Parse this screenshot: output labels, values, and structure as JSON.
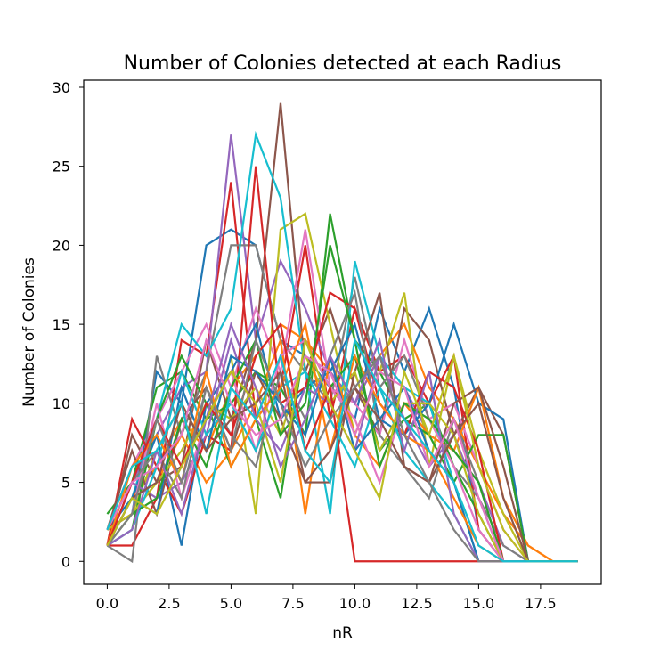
{
  "chart_data": {
    "type": "line",
    "title": "Number of Colonies detected at each Radius",
    "xlabel": "nR",
    "ylabel": "Number of Colonies",
    "xlim": [
      -0.95,
      19.95
    ],
    "ylim": [
      -1.45,
      30.45
    ],
    "xticks": [
      0.0,
      2.5,
      5.0,
      7.5,
      10.0,
      12.5,
      15.0,
      17.5
    ],
    "xtick_labels": [
      "0.0",
      "2.5",
      "5.0",
      "7.5",
      "10.0",
      "12.5",
      "15.0",
      "17.5"
    ],
    "yticks": [
      0,
      5,
      10,
      15,
      20,
      25,
      30
    ],
    "ytick_labels": [
      "0",
      "5",
      "10",
      "15",
      "20",
      "25",
      "30"
    ],
    "grid": false,
    "legend": "none",
    "x": [
      0,
      1,
      2,
      3,
      4,
      5,
      6,
      7,
      8,
      9,
      10,
      11,
      12,
      13,
      14,
      15,
      16,
      17,
      18,
      19
    ],
    "series": [
      {
        "color": "#1f77b4",
        "values": [
          2,
          3,
          12,
          10,
          20,
          21,
          20,
          14,
          13,
          11,
          9,
          16,
          12,
          16,
          11,
          2,
          0,
          0,
          0,
          0
        ]
      },
      {
        "color": "#ff7f0e",
        "values": [
          1,
          4,
          6,
          9,
          7,
          11,
          13,
          15,
          14,
          12,
          10,
          13,
          15,
          11,
          9,
          6,
          3,
          1,
          0,
          0
        ]
      },
      {
        "color": "#2ca02c",
        "values": [
          3,
          5,
          11,
          12,
          9,
          10,
          12,
          11,
          8,
          22,
          14,
          12,
          9,
          10,
          6,
          3,
          0,
          0,
          0,
          0
        ]
      },
      {
        "color": "#d62728",
        "values": [
          1,
          1,
          4,
          14,
          13,
          24,
          9,
          11,
          20,
          9,
          16,
          12,
          13,
          10,
          13,
          2,
          0,
          0,
          0,
          0
        ]
      },
      {
        "color": "#9467bd",
        "values": [
          2,
          5,
          8,
          11,
          12,
          27,
          14,
          19,
          16,
          12,
          10,
          13,
          11,
          8,
          7,
          5,
          1,
          0,
          0,
          0
        ]
      },
      {
        "color": "#8c564b",
        "values": [
          1,
          8,
          5,
          6,
          14,
          9,
          14,
          29,
          12,
          16,
          11,
          8,
          16,
          14,
          8,
          11,
          8,
          0,
          0,
          0
        ]
      },
      {
        "color": "#e377c2",
        "values": [
          2,
          6,
          9,
          12,
          15,
          11,
          16,
          12,
          21,
          11,
          10,
          8,
          14,
          9,
          10,
          6,
          2,
          0,
          0,
          0
        ]
      },
      {
        "color": "#7f7f7f",
        "values": [
          1,
          0,
          13,
          8,
          12,
          20,
          20,
          14,
          12,
          10,
          18,
          11,
          13,
          9,
          6,
          4,
          1,
          0,
          0,
          0
        ]
      },
      {
        "color": "#bcbd22",
        "values": [
          1,
          3,
          7,
          10,
          7,
          13,
          3,
          21,
          22,
          15,
          8,
          12,
          17,
          6,
          13,
          7,
          3,
          0,
          0,
          0
        ]
      },
      {
        "color": "#17becf",
        "values": [
          2,
          4,
          9,
          15,
          13,
          16,
          27,
          23,
          12,
          3,
          19,
          13,
          11,
          10,
          5,
          0,
          0,
          0,
          0,
          0
        ]
      },
      {
        "color": "#1f77b4",
        "values": [
          2,
          4,
          8,
          1,
          10,
          12,
          15,
          9,
          11,
          12,
          15,
          9,
          8,
          10,
          15,
          10,
          9,
          0,
          0,
          0
        ]
      },
      {
        "color": "#ff7f0e",
        "values": [
          2,
          3,
          5,
          8,
          5,
          7,
          10,
          14,
          3,
          13,
          8,
          6,
          10,
          8,
          7,
          11,
          4,
          1,
          0,
          0
        ]
      },
      {
        "color": "#2ca02c",
        "values": [
          1,
          2,
          9,
          13,
          10,
          6,
          9,
          4,
          14,
          11,
          13,
          7,
          9,
          8,
          5,
          8,
          8,
          0,
          0,
          0
        ]
      },
      {
        "color": "#d62728",
        "values": [
          1,
          9,
          6,
          3,
          8,
          7,
          25,
          10,
          11,
          17,
          16,
          10,
          8,
          12,
          11,
          7,
          0,
          0,
          0,
          0
        ]
      },
      {
        "color": "#9467bd",
        "values": [
          1,
          5,
          4,
          5,
          8,
          14,
          9,
          7,
          11,
          10,
          7,
          13,
          9,
          6,
          8,
          4,
          0,
          0,
          0,
          0
        ]
      },
      {
        "color": "#8c564b",
        "values": [
          2,
          7,
          3,
          9,
          11,
          7,
          12,
          9,
          5,
          5,
          12,
          17,
          6,
          5,
          10,
          11,
          6,
          0,
          0,
          0
        ]
      },
      {
        "color": "#e377c2",
        "values": [
          1,
          3,
          10,
          4,
          9,
          12,
          7,
          13,
          14,
          11,
          9,
          5,
          10,
          9,
          6,
          2,
          0,
          0,
          0,
          0
        ]
      },
      {
        "color": "#7f7f7f",
        "values": [
          1,
          5,
          7,
          4,
          11,
          8,
          6,
          12,
          9,
          13,
          17,
          8,
          6,
          4,
          9,
          5,
          0,
          0,
          0,
          0
        ]
      },
      {
        "color": "#bcbd22",
        "values": [
          2,
          3,
          5,
          7,
          10,
          9,
          11,
          8,
          13,
          10,
          12,
          7,
          10,
          10,
          8,
          3,
          0,
          0,
          0,
          0
        ]
      },
      {
        "color": "#17becf",
        "values": [
          1,
          2,
          6,
          12,
          8,
          10,
          7,
          11,
          12,
          9,
          6,
          11,
          7,
          5,
          3,
          0,
          0,
          0,
          0,
          0
        ]
      },
      {
        "color": "#1f77b4",
        "values": [
          1,
          4,
          3,
          11,
          7,
          13,
          12,
          10,
          8,
          13,
          7,
          9,
          11,
          7,
          5,
          0,
          0,
          0,
          0,
          0
        ]
      },
      {
        "color": "#ff7f0e",
        "values": [
          1,
          6,
          8,
          5,
          12,
          6,
          9,
          11,
          15,
          7,
          13,
          10,
          8,
          7,
          4,
          1,
          0,
          0,
          0,
          0
        ]
      },
      {
        "color": "#2ca02c",
        "values": [
          1,
          3,
          4,
          9,
          6,
          11,
          14,
          8,
          10,
          20,
          14,
          6,
          10,
          9,
          7,
          5,
          0,
          0,
          0,
          0
        ]
      },
      {
        "color": "#d62728",
        "values": [
          1,
          5,
          9,
          6,
          10,
          8,
          13,
          15,
          7,
          11,
          0,
          0,
          0,
          0,
          0,
          0,
          0,
          0,
          0,
          0
        ]
      },
      {
        "color": "#9467bd",
        "values": [
          1,
          2,
          7,
          3,
          9,
          15,
          11,
          6,
          9,
          13,
          10,
          14,
          7,
          12,
          3,
          0,
          0,
          0,
          0,
          0
        ]
      },
      {
        "color": "#8c564b",
        "values": [
          1,
          4,
          5,
          10,
          7,
          9,
          10,
          12,
          5,
          7,
          11,
          9,
          6,
          5,
          8,
          10,
          4,
          0,
          0,
          0
        ]
      },
      {
        "color": "#e377c2",
        "values": [
          2,
          5,
          6,
          8,
          14,
          10,
          8,
          9,
          13,
          12,
          8,
          12,
          11,
          6,
          9,
          4,
          0,
          0,
          0,
          0
        ]
      },
      {
        "color": "#7f7f7f",
        "values": [
          1,
          3,
          9,
          5,
          11,
          7,
          14,
          10,
          6,
          9,
          11,
          13,
          8,
          5,
          2,
          0,
          0,
          0,
          0,
          0
        ]
      },
      {
        "color": "#bcbd22",
        "values": [
          1,
          4,
          3,
          6,
          9,
          12,
          10,
          5,
          14,
          10,
          7,
          4,
          12,
          8,
          13,
          6,
          2,
          0,
          0,
          0
        ]
      },
      {
        "color": "#17becf",
        "values": [
          2,
          6,
          7,
          10,
          3,
          11,
          9,
          13,
          7,
          5,
          14,
          11,
          9,
          7,
          5,
          1,
          0,
          0,
          0,
          0
        ]
      }
    ]
  }
}
